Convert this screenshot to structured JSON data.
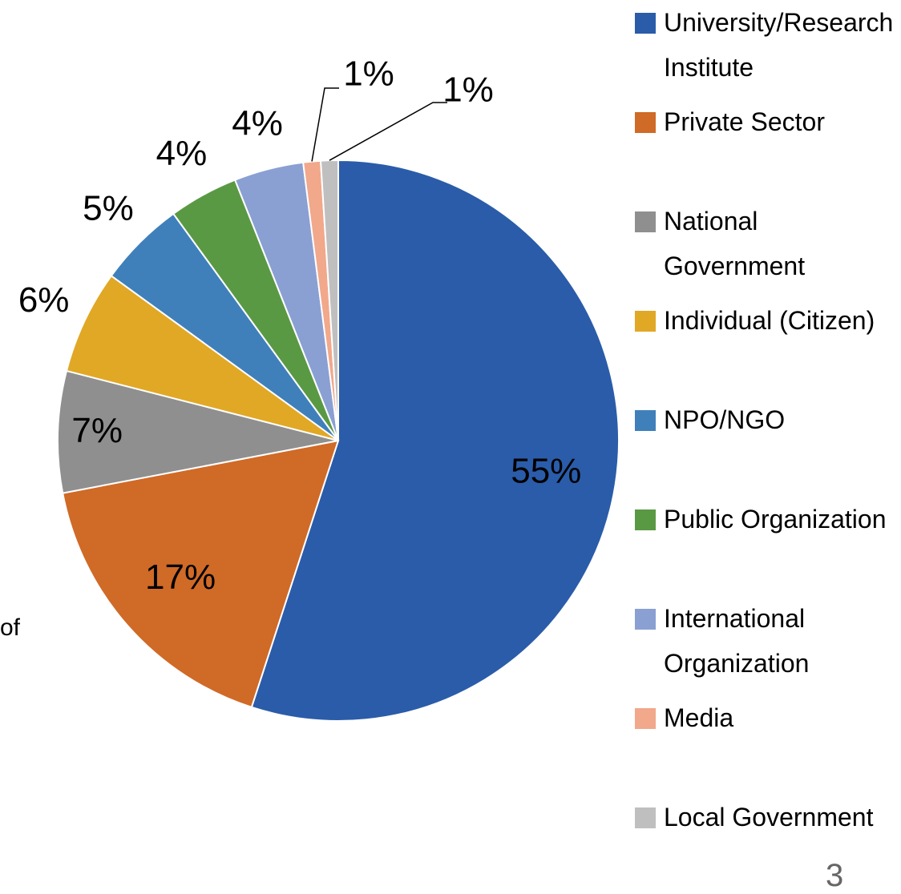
{
  "chart_data": {
    "type": "pie",
    "categories": [
      "University/Research Institute",
      "Private Sector",
      "National Government",
      "Individual (Citizen)",
      "NPO/NGO",
      "Public Organization",
      "International Organization",
      "Media",
      "Local Government"
    ],
    "values": [
      55,
      17,
      7,
      6,
      5,
      4,
      4,
      1,
      1
    ],
    "value_labels": [
      "55%",
      "17%",
      "7%",
      "6%",
      "5%",
      "4%",
      "4%",
      "1%",
      "1%"
    ],
    "colors": [
      "#2a5ca9",
      "#d06a27",
      "#8f8f8f",
      "#e1a826",
      "#3f80bb",
      "#5a9944",
      "#8aa0d3",
      "#f1a88b",
      "#bfbfbf"
    ],
    "legend": "right"
  },
  "stray_text": "of",
  "page_number": "3"
}
